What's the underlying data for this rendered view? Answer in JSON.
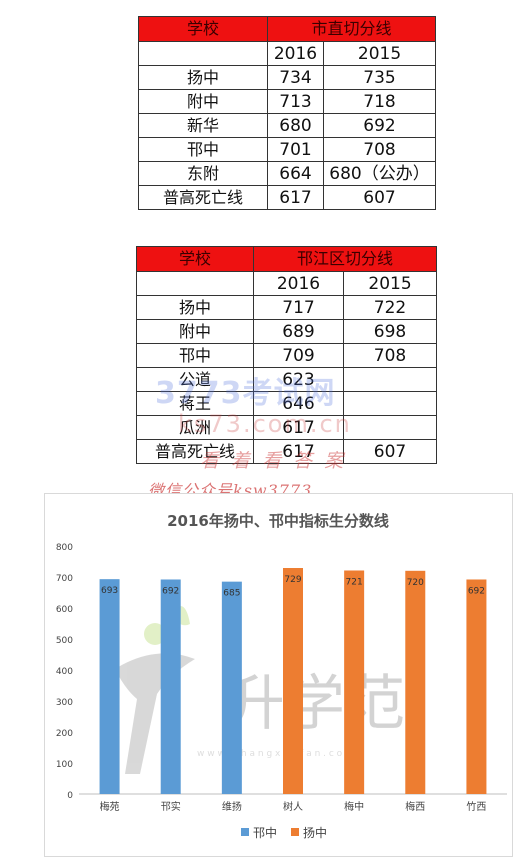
{
  "table1": {
    "header": {
      "school": "学校",
      "title": "市直切分线"
    },
    "years": [
      "2016",
      "2015"
    ],
    "rows": [
      {
        "name": "扬中",
        "y2016": "734",
        "y2015": "735"
      },
      {
        "name": "附中",
        "y2016": "713",
        "y2015": "718"
      },
      {
        "name": "新华",
        "y2016": "680",
        "y2015": "692"
      },
      {
        "name": "邗中",
        "y2016": "701",
        "y2015": "708"
      },
      {
        "name": "东附",
        "y2016": "664",
        "y2015": "680（公办）"
      },
      {
        "name": "普高死亡线",
        "y2016": "617",
        "y2015": "607"
      }
    ]
  },
  "table2": {
    "header": {
      "school": "学校",
      "title": "邗江区切分线"
    },
    "years": [
      "2016",
      "2015"
    ],
    "rows": [
      {
        "name": "扬中",
        "y2016": "717",
        "y2015": "722"
      },
      {
        "name": "附中",
        "y2016": "689",
        "y2015": "698"
      },
      {
        "name": "邗中",
        "y2016": "709",
        "y2015": "708"
      },
      {
        "name": "公道",
        "y2016": "623",
        "y2015": ""
      },
      {
        "name": "蒋王",
        "y2016": "646",
        "y2015": ""
      },
      {
        "name": "瓜洲",
        "y2016": "617",
        "y2015": ""
      },
      {
        "name": "普高死亡线",
        "y2016": "617",
        "y2015": "607"
      }
    ]
  },
  "watermarks": {
    "brand": "3773考试网",
    "url": "ks73.com.cn",
    "slogan": "看 着 看 答 案",
    "wechat": "微信公众号ksw3773",
    "chart_logo": "升学范",
    "chart_logo_url": "w w w . s h a n g x u e f a n . c o m"
  },
  "colors": {
    "header_red": "#ee1111",
    "series_hanzhong": "#5b9bd5",
    "series_yangzhong": "#ed7d31"
  },
  "chart_data": {
    "type": "bar",
    "title": "2016年扬中、邗中指标生分数线",
    "categories": [
      "梅苑",
      "邗实",
      "维扬",
      "树人",
      "梅中",
      "梅西",
      "竹西"
    ],
    "series": [
      {
        "name": "邗中",
        "values": [
          693,
          692,
          685,
          null,
          null,
          null,
          null
        ]
      },
      {
        "name": "扬中",
        "values": [
          null,
          null,
          null,
          729,
          721,
          720,
          692
        ]
      }
    ],
    "value_labels": [
      "693",
      "692",
      "685",
      "729",
      "721",
      "720",
      "692"
    ],
    "ylim": [
      0,
      800
    ],
    "yticks": [
      "0",
      "100",
      "200",
      "300",
      "400",
      "500",
      "600",
      "700",
      "800"
    ],
    "legend": "bottom",
    "grid": false
  }
}
